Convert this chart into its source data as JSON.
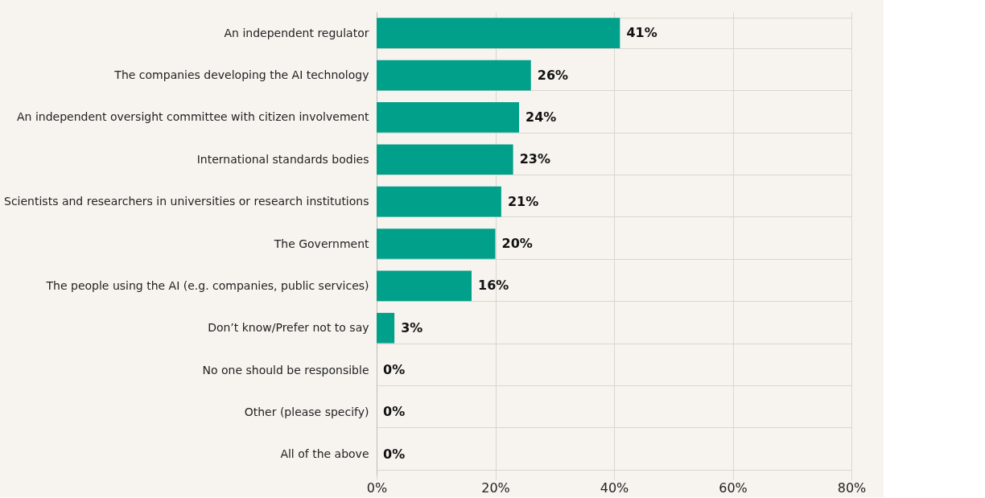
{
  "chart_data": {
    "type": "bar",
    "orientation": "horizontal",
    "categories": [
      "An independent regulator",
      "The companies developing the AI technology",
      "An independent oversight committee with citizen involvement",
      "International standards bodies",
      "Scientists and researchers in universities or research institutions",
      "The Government",
      "The people using the AI (e.g. companies, public services)",
      "Don’t know/Prefer not to say",
      "No one should be responsible",
      "Other (please specify)",
      "All of the above"
    ],
    "values": [
      41,
      26,
      24,
      23,
      21,
      20,
      16,
      3,
      0,
      0,
      0
    ],
    "value_labels": [
      "41%",
      "26%",
      "24%",
      "23%",
      "21%",
      "20%",
      "16%",
      "3%",
      "0%",
      "0%",
      "0%"
    ],
    "color": "#00a08a",
    "xlim": [
      0,
      80
    ],
    "xticks": [
      {
        "value": 0,
        "label": "0%"
      },
      {
        "value": 20,
        "label": "20%"
      },
      {
        "value": 40,
        "label": "40%"
      },
      {
        "value": 60,
        "label": "60%"
      },
      {
        "value": 80,
        "label": "80%"
      }
    ],
    "grid": true
  }
}
